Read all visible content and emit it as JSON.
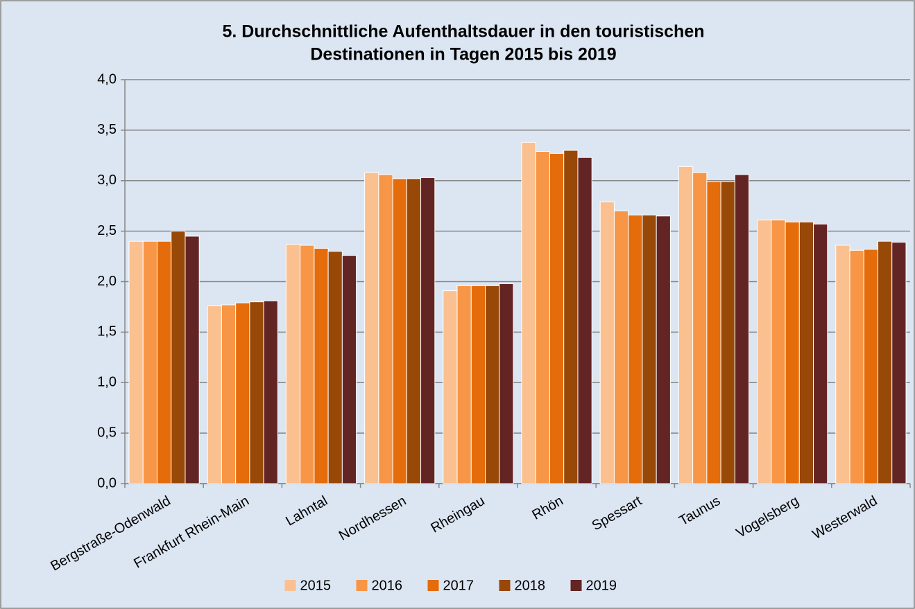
{
  "chart_data": {
    "type": "bar",
    "title": [
      "5. Durchschnittliche Aufenthaltsdauer in den touristischen",
      "Destinationen in Tagen 2015 bis 2019"
    ],
    "categories": [
      "Bergstraße-Odenwald",
      "Frankfurt Rhein-Main",
      "Lahntal",
      "Nordhessen",
      "Rheingau",
      "Rhön",
      "Spessart",
      "Taunus",
      "Vogelsberg",
      "Westerwald"
    ],
    "series": [
      {
        "name": "2015",
        "color": "#fac090",
        "values": [
          2.4,
          1.76,
          2.37,
          3.08,
          1.91,
          3.38,
          2.79,
          3.14,
          2.61,
          2.36
        ]
      },
      {
        "name": "2016",
        "color": "#f79646",
        "values": [
          2.4,
          1.77,
          2.36,
          3.06,
          1.96,
          3.29,
          2.7,
          3.08,
          2.61,
          2.31
        ]
      },
      {
        "name": "2017",
        "color": "#e46c0a",
        "values": [
          2.4,
          1.79,
          2.33,
          3.02,
          1.96,
          3.27,
          2.66,
          2.99,
          2.59,
          2.32
        ]
      },
      {
        "name": "2018",
        "color": "#984807",
        "values": [
          2.5,
          1.8,
          2.3,
          3.02,
          1.96,
          3.3,
          2.66,
          2.99,
          2.59,
          2.4
        ]
      },
      {
        "name": "2019",
        "color": "#632523",
        "values": [
          2.45,
          1.81,
          2.26,
          3.03,
          1.98,
          3.23,
          2.65,
          3.06,
          2.57,
          2.39
        ]
      }
    ],
    "ylim": [
      0,
      4
    ],
    "yticks": [
      {
        "value": 0,
        "label": "0,0"
      },
      {
        "value": 0.5,
        "label": "0,5"
      },
      {
        "value": 1,
        "label": "1,0"
      },
      {
        "value": 1.5,
        "label": "1,5"
      },
      {
        "value": 2,
        "label": "2,0"
      },
      {
        "value": 2.5,
        "label": "2,5"
      },
      {
        "value": 3,
        "label": "3,0"
      },
      {
        "value": 3.5,
        "label": "3,5"
      },
      {
        "value": 4,
        "label": "4,0"
      }
    ],
    "grid": true,
    "legend": "bottom"
  }
}
